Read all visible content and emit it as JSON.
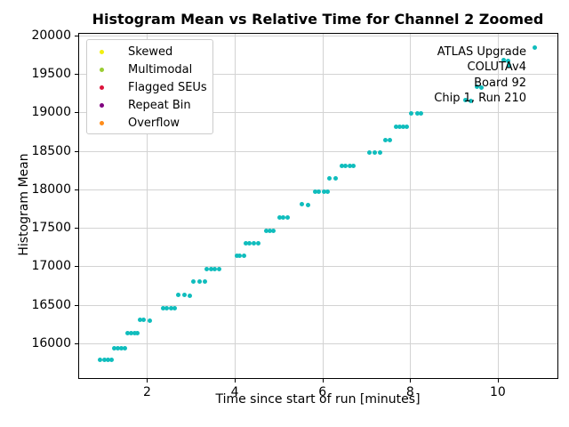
{
  "title": "Histogram Mean vs Relative Time for Channel 2 Zoomed",
  "annotation": {
    "lines": [
      "ATLAS Upgrade",
      "COLUTAv4",
      "Board 92",
      "Chip 1, Run 210"
    ]
  },
  "legend": {
    "position": "upper-left",
    "items": [
      {
        "label": "Skewed",
        "color": "#f2ef10"
      },
      {
        "label": "Multimodal",
        "color": "#9acd32"
      },
      {
        "label": "Flagged SEUs",
        "color": "#dc143c"
      },
      {
        "label": "Repeat Bin",
        "color": "#800080"
      },
      {
        "label": "Overflow",
        "color": "#ff8c1a"
      }
    ]
  },
  "chart_data": {
    "type": "scatter",
    "title": "Histogram Mean vs Relative Time for Channel 2 Zoomed",
    "xlabel": "Time since start of run [minutes]",
    "ylabel": "Histogram Mean",
    "xlim": [
      0.45,
      11.36
    ],
    "ylim": [
      15549,
      20023
    ],
    "xticks": [
      2,
      4,
      6,
      8,
      10
    ],
    "yticks": [
      16000,
      16500,
      17000,
      17500,
      18000,
      18500,
      19000,
      19500,
      20000
    ],
    "grid": true,
    "grid_color": "#d3d3d3",
    "point_color": "#10bdbd",
    "points": [
      [
        0.93,
        15790
      ],
      [
        1.02,
        15790
      ],
      [
        1.11,
        15790
      ],
      [
        1.19,
        15790
      ],
      [
        1.25,
        15935
      ],
      [
        1.33,
        15935
      ],
      [
        1.41,
        15935
      ],
      [
        1.5,
        15935
      ],
      [
        1.56,
        16130
      ],
      [
        1.63,
        16130
      ],
      [
        1.71,
        16130
      ],
      [
        1.78,
        16130
      ],
      [
        1.83,
        16310
      ],
      [
        1.92,
        16310
      ],
      [
        2.07,
        16300
      ],
      [
        2.37,
        16455
      ],
      [
        2.45,
        16455
      ],
      [
        2.54,
        16455
      ],
      [
        2.62,
        16455
      ],
      [
        2.71,
        16625
      ],
      [
        2.85,
        16625
      ],
      [
        2.98,
        16620
      ],
      [
        3.06,
        16800
      ],
      [
        3.2,
        16800
      ],
      [
        3.32,
        16800
      ],
      [
        3.37,
        16960
      ],
      [
        3.46,
        16960
      ],
      [
        3.55,
        16960
      ],
      [
        3.64,
        16960
      ],
      [
        4.04,
        17135
      ],
      [
        4.12,
        17135
      ],
      [
        4.21,
        17135
      ],
      [
        4.26,
        17300
      ],
      [
        4.33,
        17300
      ],
      [
        4.44,
        17300
      ],
      [
        4.53,
        17300
      ],
      [
        4.71,
        17465
      ],
      [
        4.8,
        17465
      ],
      [
        4.88,
        17465
      ],
      [
        5.02,
        17640
      ],
      [
        5.11,
        17640
      ],
      [
        5.2,
        17640
      ],
      [
        5.52,
        17805
      ],
      [
        5.68,
        17800
      ],
      [
        5.84,
        17975
      ],
      [
        5.91,
        17975
      ],
      [
        6.03,
        17975
      ],
      [
        6.11,
        17975
      ],
      [
        6.16,
        18140
      ],
      [
        6.31,
        18140
      ],
      [
        6.44,
        18305
      ],
      [
        6.53,
        18305
      ],
      [
        6.62,
        18305
      ],
      [
        6.7,
        18305
      ],
      [
        7.07,
        18475
      ],
      [
        7.19,
        18475
      ],
      [
        7.31,
        18475
      ],
      [
        7.44,
        18645
      ],
      [
        7.53,
        18645
      ],
      [
        7.68,
        18810
      ],
      [
        7.76,
        18810
      ],
      [
        7.85,
        18810
      ],
      [
        7.93,
        18810
      ],
      [
        8.03,
        18985
      ],
      [
        8.16,
        18985
      ],
      [
        8.24,
        18985
      ],
      [
        9.27,
        19165
      ],
      [
        9.38,
        19145
      ],
      [
        9.53,
        19340
      ],
      [
        9.63,
        19325
      ],
      [
        10.14,
        19685
      ],
      [
        10.23,
        19675
      ],
      [
        10.26,
        19610
      ],
      [
        10.85,
        19845
      ]
    ]
  }
}
